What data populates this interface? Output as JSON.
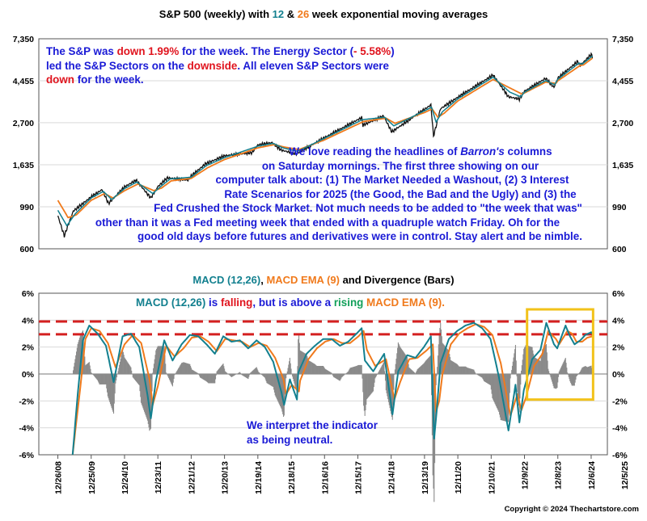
{
  "top_title": {
    "pre": "S&P 500 (weekly) with ",
    "n12": "12",
    "amp": " & ",
    "n26": "26",
    "post": " week exponential moving averages"
  },
  "top_note": {
    "line1_a": "The S&P was ",
    "line1_b": "down 1.99%",
    "line1_c": " for the week.  The Energy Sector (",
    "line1_d": "- 5.58%",
    "line1_e": ")",
    "line2_a": "led the S&P Sectors on the ",
    "line2_b": "downside",
    "line2_c": ".  All eleven S&P Sectors were",
    "line3_a": "down",
    "line3_b": " for the week."
  },
  "barrons_note": {
    "l1_a": "We love reading the headlines of ",
    "l1_b": "Barron's",
    "l1_c": " columns",
    "l2": "on Saturday mornings.  The first three showing on our",
    "l3": "computer talk about: (1) The Market Needed a Washout, (2) 3 Interest",
    "l4": "Rate Scenarios for 2025 (the Good, the Bad and the Ugly) and (3) the",
    "l5": "Fed Crushed the Stock Market.  Not much needs to be added to \"the week that was\"",
    "l6": "other than it was a Fed meeting week that ended with a quadruple watch Friday.  Oh for the",
    "l7": "good old days before futures and derivatives were in control.  Stay alert and be nimble."
  },
  "macd_title": {
    "a": "MACD (12,26)",
    "b": ", ",
    "c": "MACD EMA (9)",
    "d": " and Divergence (Bars)"
  },
  "macd_note": {
    "a": "MACD (12,26)",
    "b": " is ",
    "c": "falling",
    "d": ", but is above a ",
    "e": "rising",
    "f": " MACD EMA (9)",
    "g": "."
  },
  "interpret_note": {
    "l1": "We interpret the indicator",
    "l2": "as being neutral."
  },
  "copyright": "Copyright © 2024 Thechartstore.com",
  "colors": {
    "price": "#111111",
    "ema12": "#13808f",
    "ema26": "#f07a1c",
    "macd": "#13808f",
    "signal": "#f07a1c",
    "hist": "#8a8a8a",
    "refline": "#d42020",
    "highlight": "#f2c21a",
    "grid": "#d9d9d9"
  },
  "chart_data": [
    {
      "type": "line",
      "yscale": "log",
      "y_ticks": [
        "7,350",
        "4,455",
        "2,700",
        "1,635",
        "990",
        "600"
      ],
      "y_tick_values": [
        7350,
        4455,
        2700,
        1635,
        990,
        600
      ],
      "ylim": [
        600,
        7350
      ],
      "series": [
        {
          "name": "S&P 500 (weekly)",
          "x": [
            "2008-12-26",
            "2009-03-06",
            "2009-06-12",
            "2009-12-25",
            "2010-04-23",
            "2010-07-02",
            "2010-12-24",
            "2011-04-29",
            "2011-10-07",
            "2011-12-23",
            "2012-04-06",
            "2012-11-16",
            "2012-12-21",
            "2013-05-24",
            "2013-12-20",
            "2014-10-17",
            "2014-12-19",
            "2015-05-22",
            "2015-08-28",
            "2016-02-12",
            "2016-12-16",
            "2018-01-26",
            "2018-02-09",
            "2018-09-21",
            "2018-12-21",
            "2019-12-13",
            "2020-02-21",
            "2020-03-20",
            "2020-06-05",
            "2020-12-11",
            "2021-12-31",
            "2022-06-17",
            "2022-10-14",
            "2022-12-09",
            "2023-07-28",
            "2023-10-27",
            "2023-12-08",
            "2024-07-12",
            "2024-08-09",
            "2024-12-06",
            "2024-12-20"
          ],
          "values": [
            890,
            700,
            940,
            1115,
            1215,
            1030,
            1255,
            1360,
            1100,
            1260,
            1400,
            1360,
            1430,
            1650,
            1820,
            1890,
            2070,
            2130,
            1950,
            1860,
            2260,
            2870,
            2620,
            2930,
            2420,
            3170,
            3340,
            2300,
            3190,
            3660,
            4770,
            3680,
            3580,
            3930,
            4580,
            4120,
            4600,
            5610,
            5350,
            6090,
            5930
          ]
        },
        {
          "name": "12 week EMA",
          "x": [
            "2008-12-26",
            "2009-04-03",
            "2009-07-03",
            "2009-12-25",
            "2010-05-07",
            "2010-08-06",
            "2010-12-24",
            "2011-05-06",
            "2011-10-28",
            "2012-01-13",
            "2012-05-04",
            "2012-12-21",
            "2013-06-07",
            "2013-12-20",
            "2014-12-19",
            "2015-06-05",
            "2015-09-18",
            "2016-02-26",
            "2016-12-16",
            "2018-02-02",
            "2018-10-05",
            "2019-01-11",
            "2019-12-13",
            "2020-02-28",
            "2020-04-17",
            "2020-06-26",
            "2020-12-11",
            "2021-12-31",
            "2022-07-01",
            "2022-10-28",
            "2022-12-09",
            "2023-07-28",
            "2023-11-03",
            "2023-12-08",
            "2024-07-26",
            "2024-08-30",
            "2024-12-20"
          ],
          "values": [
            950,
            790,
            910,
            1100,
            1190,
            1080,
            1230,
            1330,
            1160,
            1250,
            1380,
            1410,
            1620,
            1780,
            2040,
            2110,
            2000,
            1920,
            2240,
            2800,
            2880,
            2600,
            3110,
            3250,
            2720,
            3080,
            3590,
            4650,
            3890,
            3680,
            3880,
            4460,
            4250,
            4530,
            5500,
            5430,
            5980
          ]
        },
        {
          "name": "26 week EMA",
          "x": [
            "2008-12-26",
            "2009-04-17",
            "2009-07-17",
            "2009-12-25",
            "2010-05-21",
            "2010-08-20",
            "2010-12-24",
            "2011-05-20",
            "2011-11-11",
            "2012-02-03",
            "2012-05-18",
            "2012-12-21",
            "2013-06-21",
            "2013-12-20",
            "2014-12-19",
            "2015-06-19",
            "2015-10-02",
            "2016-03-11",
            "2016-12-16",
            "2018-02-16",
            "2018-10-19",
            "2019-01-25",
            "2019-12-13",
            "2020-03-06",
            "2020-05-08",
            "2020-07-17",
            "2020-12-11",
            "2021-12-31",
            "2022-07-15",
            "2022-11-11",
            "2022-12-09",
            "2023-07-28",
            "2023-11-17",
            "2023-12-08",
            "2024-08-09",
            "2024-09-13",
            "2024-12-20"
          ],
          "values": [
            1070,
            870,
            900,
            1070,
            1160,
            1100,
            1200,
            1300,
            1200,
            1240,
            1350,
            1390,
            1580,
            1740,
            2000,
            2080,
            2020,
            1960,
            2200,
            2740,
            2850,
            2680,
            3050,
            3180,
            2880,
            3030,
            3500,
            4520,
            4060,
            3800,
            3850,
            4380,
            4320,
            4450,
            5350,
            5380,
            5830
          ]
        }
      ]
    },
    {
      "type": "line",
      "title": "MACD (12,26), MACD EMA (9) and Divergence (Bars)",
      "y_ticks": [
        "6%",
        "4%",
        "2%",
        "0%",
        "-2%",
        "-4%",
        "-6%"
      ],
      "ylim": [
        -6,
        6
      ],
      "x_ticks": [
        "12/26/08",
        "12/25/09",
        "12/24/10",
        "12/23/11",
        "12/21/12",
        "12/20/13",
        "12/19/14",
        "12/18/15",
        "12/16/16",
        "12/15/17",
        "12/14/18",
        "12/13/19",
        "12/11/20",
        "12/10/21",
        "12/9/22",
        "12/8/23",
        "12/6/24",
        "12/5/25"
      ],
      "reference_lines": [
        3.9,
        2.95
      ],
      "highlight_box": {
        "x_start": "2023-01-06",
        "x_end": "2024-12-27",
        "y_top": 4.8,
        "y_bottom": -1.9
      },
      "series": [
        {
          "name": "MACD (12,26)",
          "x": [
            "2009-06-05",
            "2009-07-31",
            "2009-09-25",
            "2009-12-04",
            "2010-03-05",
            "2010-06-04",
            "2010-08-27",
            "2010-12-03",
            "2011-03-04",
            "2011-06-03",
            "2011-09-02",
            "2011-10-07",
            "2011-12-02",
            "2012-03-02",
            "2012-06-01",
            "2012-09-07",
            "2012-12-07",
            "2013-03-08",
            "2013-06-07",
            "2013-09-06",
            "2013-12-06",
            "2014-03-07",
            "2014-06-06",
            "2014-09-05",
            "2014-12-05",
            "2015-03-06",
            "2015-06-05",
            "2015-09-04",
            "2015-10-02",
            "2015-12-04",
            "2016-02-19",
            "2016-03-04",
            "2016-06-03",
            "2016-09-02",
            "2016-12-02",
            "2017-03-03",
            "2017-06-02",
            "2017-09-01",
            "2017-12-01",
            "2018-01-26",
            "2018-03-02",
            "2018-06-01",
            "2018-09-28",
            "2018-12-28",
            "2019-03-01",
            "2019-06-07",
            "2019-09-06",
            "2019-12-06",
            "2020-02-21",
            "2020-03-27",
            "2020-05-01",
            "2020-06-05",
            "2020-09-04",
            "2020-12-04",
            "2021-03-05",
            "2021-06-04",
            "2021-09-03",
            "2021-12-03",
            "2022-03-04",
            "2022-06-17",
            "2022-09-02",
            "2022-10-14",
            "2022-12-02",
            "2023-03-03",
            "2023-06-02",
            "2023-08-04",
            "2023-10-27",
            "2023-12-01",
            "2024-03-01",
            "2024-04-19",
            "2024-06-07",
            "2024-08-09",
            "2024-10-04",
            "2024-12-06",
            "2024-12-20"
          ],
          "values": [
            -6.0,
            -1.5,
            2.5,
            3.6,
            3.0,
            2.1,
            -0.6,
            2.8,
            3.0,
            2.0,
            -1.6,
            -3.3,
            -0.5,
            2.5,
            1.0,
            2.2,
            2.9,
            2.8,
            2.2,
            1.5,
            2.8,
            2.4,
            2.5,
            1.9,
            2.5,
            2.0,
            0.9,
            -1.4,
            -2.3,
            -0.4,
            -1.9,
            0.1,
            1.5,
            2.1,
            2.6,
            2.6,
            2.1,
            2.4,
            3.0,
            3.4,
            1.0,
            0.2,
            1.5,
            -3.0,
            0.2,
            1.4,
            1.2,
            2.0,
            2.8,
            -4.8,
            -2.2,
            0.8,
            2.6,
            3.2,
            3.6,
            3.8,
            3.4,
            2.6,
            -0.2,
            -4.2,
            -0.8,
            -3.6,
            -1.2,
            1.1,
            1.8,
            3.8,
            2.2,
            1.9,
            3.6,
            2.8,
            2.2,
            2.5,
            2.9,
            3.1,
            2.95
          ]
        },
        {
          "name": "MACD EMA (9)",
          "x": [
            "2009-06-05",
            "2009-08-28",
            "2009-10-23",
            "2009-12-25",
            "2010-03-26",
            "2010-06-25",
            "2010-09-17",
            "2010-12-24",
            "2011-03-25",
            "2011-06-24",
            "2011-09-23",
            "2011-10-28",
            "2011-12-23",
            "2012-03-23",
            "2012-06-22",
            "2012-09-28",
            "2012-12-28",
            "2013-03-29",
            "2013-06-28",
            "2013-09-27",
            "2013-12-27",
            "2014-03-28",
            "2014-06-27",
            "2014-09-26",
            "2014-12-26",
            "2015-03-27",
            "2015-06-26",
            "2015-09-25",
            "2015-10-23",
            "2015-12-25",
            "2016-03-11",
            "2016-03-25",
            "2016-06-24",
            "2016-09-23",
            "2016-12-23",
            "2017-03-24",
            "2017-06-23",
            "2017-09-22",
            "2017-12-22",
            "2018-02-16",
            "2018-03-23",
            "2018-06-22",
            "2018-10-19",
            "2019-01-18",
            "2019-03-22",
            "2019-06-28",
            "2019-09-27",
            "2019-12-27",
            "2020-03-13",
            "2020-04-17",
            "2020-05-22",
            "2020-06-26",
            "2020-09-25",
            "2020-12-25",
            "2021-03-26",
            "2021-06-25",
            "2021-09-24",
            "2021-12-24",
            "2022-03-25",
            "2022-07-08",
            "2022-09-23",
            "2022-11-04",
            "2022-12-23",
            "2023-03-24",
            "2023-06-23",
            "2023-08-25",
            "2023-11-17",
            "2023-12-22",
            "2024-03-22",
            "2024-05-10",
            "2024-06-28",
            "2024-08-30",
            "2024-10-25",
            "2024-12-20"
          ],
          "values": [
            -6.0,
            -1.0,
            2.6,
            3.4,
            3.2,
            2.3,
            0.5,
            2.2,
            2.9,
            2.3,
            -0.4,
            -2.3,
            -0.9,
            2.1,
            1.3,
            1.9,
            2.7,
            2.8,
            2.4,
            1.7,
            2.6,
            2.5,
            2.4,
            2.0,
            2.3,
            2.1,
            1.2,
            -0.4,
            -1.5,
            -0.8,
            -1.3,
            -0.5,
            1.1,
            1.9,
            2.4,
            2.6,
            2.3,
            2.3,
            2.8,
            3.2,
            1.8,
            0.6,
            1.1,
            -1.9,
            -0.6,
            1.1,
            1.2,
            1.7,
            2.2,
            -2.8,
            -2.0,
            0.0,
            2.2,
            3.0,
            3.4,
            3.7,
            3.5,
            2.9,
            0.8,
            -3.1,
            -1.5,
            -2.7,
            -1.8,
            0.6,
            1.5,
            3.2,
            2.6,
            2.2,
            3.2,
            3.0,
            2.4,
            2.4,
            2.7,
            2.8
          ]
        }
      ]
    }
  ]
}
